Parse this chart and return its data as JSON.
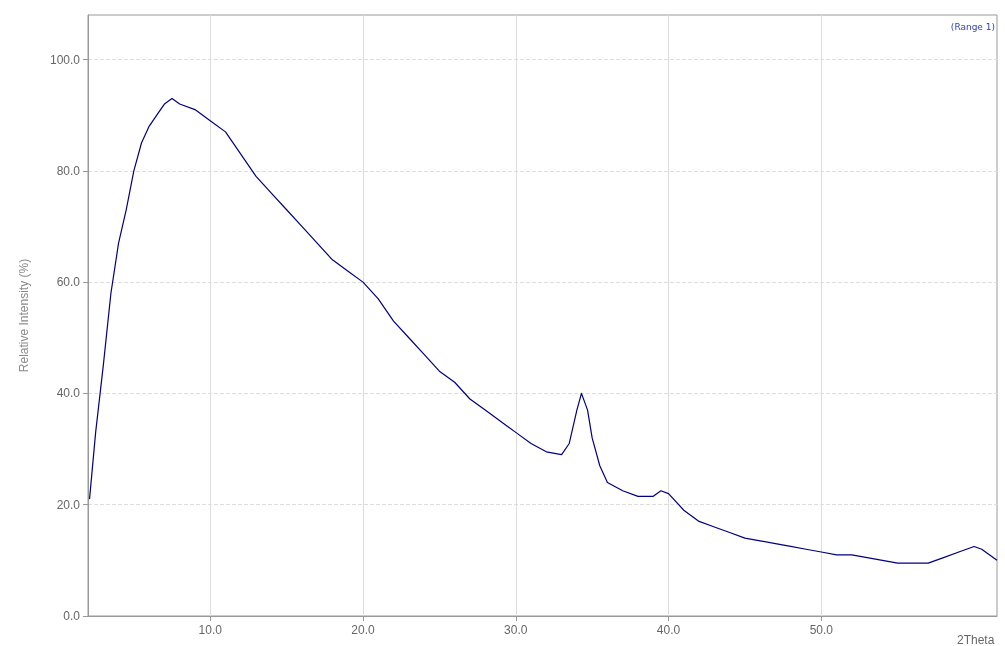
{
  "chart_data": {
    "type": "line",
    "xlabel": "2Theta",
    "ylabel": "Relative Intensity (%)",
    "annotations": [
      "(Range 1)"
    ],
    "xlim": [
      2,
      61.5
    ],
    "ylim": [
      0,
      108
    ],
    "xticks": [
      {
        "value": 10,
        "label": "10.0"
      },
      {
        "value": 20,
        "label": "20.0"
      },
      {
        "value": 30,
        "label": "30.0"
      },
      {
        "value": 40,
        "label": "40.0"
      },
      {
        "value": 50,
        "label": "50.0"
      }
    ],
    "yticks": [
      {
        "value": 0,
        "label": "0.0"
      },
      {
        "value": 20,
        "label": "20.0"
      },
      {
        "value": 40,
        "label": "40.0"
      },
      {
        "value": 60,
        "label": "60.0"
      },
      {
        "value": 80,
        "label": "80.0"
      },
      {
        "value": 100,
        "label": "100.0"
      }
    ],
    "grid": true,
    "marker": "none",
    "line_style": "solid",
    "series": [
      {
        "color": "#000080",
        "x": [
          2.1,
          2.5,
          3,
          3.5,
          4,
          4.5,
          5,
          5.5,
          6,
          6.5,
          7,
          7.5,
          8,
          9,
          10,
          11,
          12,
          13,
          14,
          15,
          16,
          17,
          18,
          19,
          20,
          21,
          22,
          23,
          24,
          25,
          26,
          27,
          28,
          29,
          30,
          31,
          32,
          33,
          33.5,
          34,
          34.3,
          34.7,
          35,
          35.5,
          36,
          37,
          38,
          39,
          39.5,
          40,
          41,
          42,
          43,
          44,
          45,
          46,
          47,
          48,
          49,
          50,
          51,
          52,
          53,
          54,
          55,
          56,
          57,
          58,
          59,
          60,
          60.5,
          61,
          61.5
        ],
        "values": [
          21,
          33,
          45,
          58,
          67,
          73,
          80,
          85,
          88,
          90,
          92,
          93,
          92,
          91,
          89,
          87,
          83,
          79,
          76,
          73,
          70,
          67,
          64,
          62,
          60,
          57,
          53,
          50,
          47,
          44,
          42,
          39,
          37,
          35,
          33,
          31,
          29.5,
          29,
          31,
          37,
          40,
          37,
          32,
          27,
          24,
          22.5,
          21.5,
          21.5,
          22.5,
          22,
          19,
          17,
          16,
          15,
          14,
          13.5,
          13,
          12.5,
          12,
          11.5,
          11,
          11,
          10.5,
          10,
          9.5,
          9.5,
          9.5,
          10.5,
          11.5,
          12.5,
          12,
          11,
          10
        ]
      }
    ]
  }
}
